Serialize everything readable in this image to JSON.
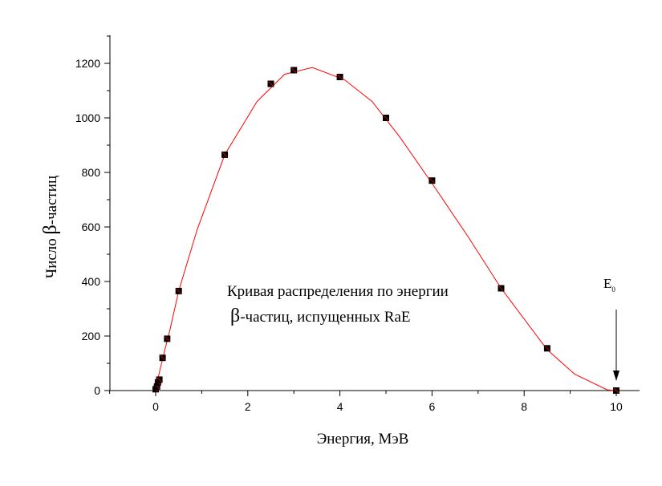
{
  "chart_data": {
    "type": "scatter",
    "xlabel": "Энергия, МэВ",
    "ylabel_prefix": "Число ",
    "ylabel_symbol": "β",
    "ylabel_suffix": "-частиц",
    "xlim": [
      -1,
      10
    ],
    "ylim": [
      0,
      1300
    ],
    "xticks": [
      0,
      2,
      4,
      6,
      8,
      10
    ],
    "yticks": [
      0,
      200,
      400,
      600,
      800,
      1000,
      1200
    ],
    "grid": false,
    "annotation_line1": "Кривая распределения по энергии",
    "annotation_symbol": "β",
    "annotation_line2": "-частиц, испущенных RaE",
    "endpoint_label": "E",
    "endpoint_subscript": "0",
    "endpoint_x": 10,
    "series": [
      {
        "kind": "points",
        "color": "#000000",
        "x": [
          0.0,
          0.03,
          0.05,
          0.08,
          0.15,
          0.25,
          0.5,
          1.5,
          2.5,
          3.0,
          4.0,
          5.0,
          6.0,
          7.5,
          8.5,
          10.0
        ],
        "y": [
          5,
          15,
          30,
          40,
          120,
          190,
          365,
          865,
          1125,
          1175,
          1150,
          1000,
          770,
          375,
          155,
          0
        ]
      },
      {
        "kind": "curve",
        "color": "#ff0000",
        "x": [
          0.0,
          0.1,
          0.2,
          0.3,
          0.5,
          0.9,
          1.5,
          2.2,
          2.8,
          3.4,
          4.1,
          4.7,
          5.3,
          6.0,
          6.8,
          7.5,
          8.5,
          9.1,
          9.8,
          10.0
        ],
        "y": [
          5,
          80,
          150,
          215,
          365,
          590,
          865,
          1060,
          1160,
          1185,
          1140,
          1060,
          930,
          760,
          560,
          375,
          150,
          60,
          3,
          0
        ]
      }
    ]
  }
}
